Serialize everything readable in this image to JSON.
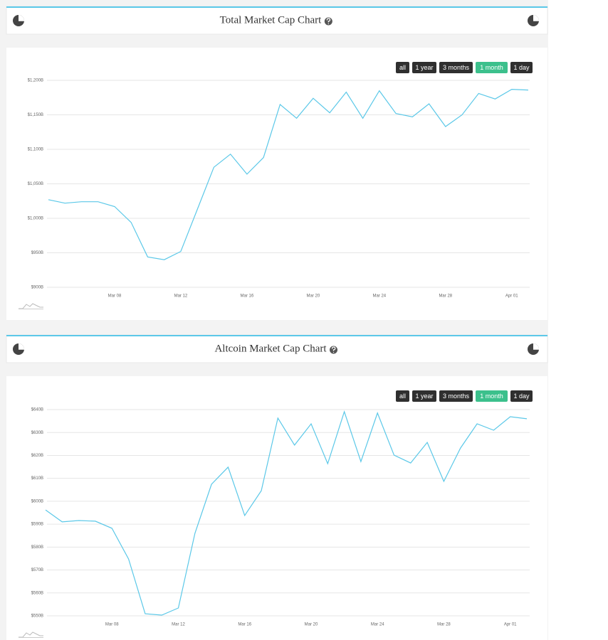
{
  "range_buttons": [
    "all",
    "1 year",
    "3 months",
    "1 month",
    "1 day"
  ],
  "active_button": "1 month",
  "chart_data": [
    {
      "type": "line",
      "title": "Total Market Cap Chart",
      "color": "#5bc8e8",
      "grid": true,
      "categories": [
        null,
        null,
        null,
        null,
        "Mar 08",
        null,
        null,
        null,
        "Mar 12",
        null,
        null,
        null,
        "Mar 16",
        null,
        null,
        null,
        "Mar 20",
        null,
        null,
        null,
        "Mar 24",
        null,
        null,
        null,
        "Mar 28",
        null,
        null,
        null,
        "Apr 01",
        null
      ],
      "values": [
        1027,
        1022,
        1024,
        1024,
        1017,
        994,
        944,
        940,
        952,
        1013,
        1074,
        1093,
        1064,
        1088,
        1165,
        1145,
        1174,
        1153,
        1183,
        1145,
        1185,
        1152,
        1147,
        1166,
        1133,
        1150,
        1181,
        1173,
        1187,
        1186
      ],
      "ylim": [
        900,
        1200
      ],
      "yticks": [
        {
          "value": 900,
          "label": "$900B"
        },
        {
          "value": 950,
          "label": "$950B"
        },
        {
          "value": 1000,
          "label": "$1,000B"
        },
        {
          "value": 1050,
          "label": "$1,050B"
        },
        {
          "value": 1100,
          "label": "$1,100B"
        },
        {
          "value": 1150,
          "label": "$1,150B"
        },
        {
          "value": 1200,
          "label": "$1,200B"
        }
      ]
    },
    {
      "type": "line",
      "title": "Altcoin Market Cap Chart",
      "color": "#5bc8e8",
      "grid": true,
      "categories": [
        null,
        null,
        null,
        null,
        "Mar 08",
        null,
        null,
        null,
        "Mar 12",
        null,
        null,
        null,
        "Mar 16",
        null,
        null,
        null,
        "Mar 20",
        null,
        null,
        null,
        "Mar 24",
        null,
        null,
        null,
        "Mar 28",
        null,
        null,
        null,
        "Apr 01",
        null
      ],
      "values": [
        596.2,
        591,
        591.6,
        591.3,
        588.2,
        574.8,
        550.9,
        550.3,
        553.4,
        586,
        607.4,
        614.9,
        593.8,
        604.6,
        636.3,
        624.5,
        633.8,
        616.4,
        639.1,
        617.3,
        638.5,
        620.1,
        616.7,
        625.7,
        608.7,
        623.2,
        633.8,
        631,
        636.9,
        636
      ],
      "ylim": [
        550,
        640
      ],
      "yticks": [
        {
          "value": 550,
          "label": "$550B"
        },
        {
          "value": 560,
          "label": "$560B"
        },
        {
          "value": 570,
          "label": "$570B"
        },
        {
          "value": 580,
          "label": "$580B"
        },
        {
          "value": 590,
          "label": "$590B"
        },
        {
          "value": 600,
          "label": "$600B"
        },
        {
          "value": 610,
          "label": "$610B"
        },
        {
          "value": 620,
          "label": "$620B"
        },
        {
          "value": 630,
          "label": "$630B"
        },
        {
          "value": 640,
          "label": "$640B"
        }
      ]
    }
  ]
}
